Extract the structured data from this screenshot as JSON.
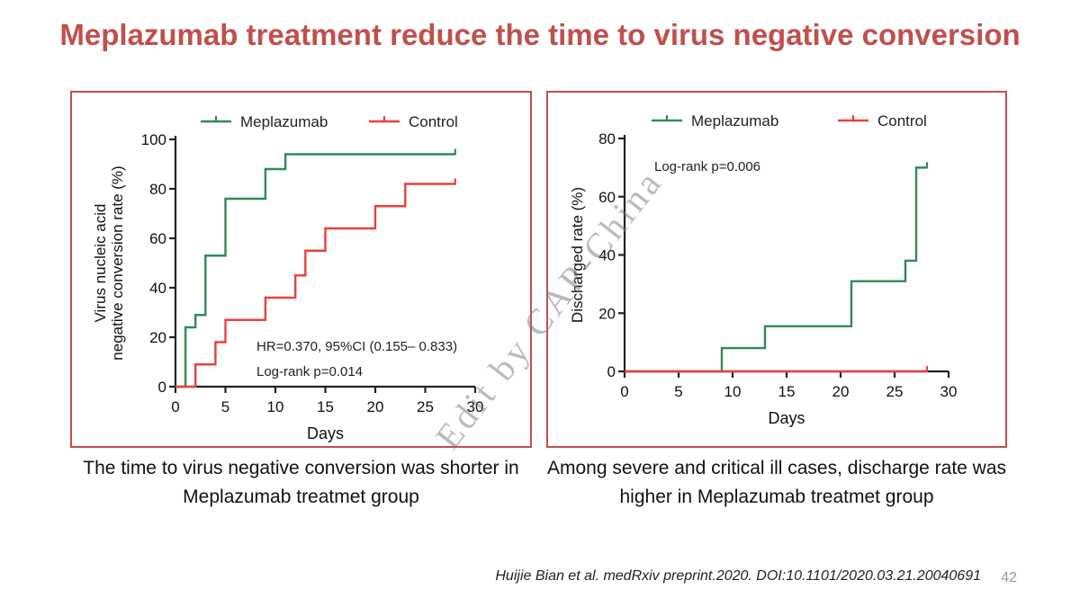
{
  "slide": {
    "title": "Meplazumab treatment reduce the time to virus negative conversion",
    "caption_left": "The time to virus negative conversion was shorter in  Meplazumab treatmet group",
    "caption_right": "Among severe and critical ill cases, discharge rate was higher in Meplazumab treatmet group",
    "citation": "Huijie Bian et al. medRxiv preprint.2020. DOI:10.1101/2020.03.21.20040691",
    "page_number": "42",
    "watermark": "Edit by CAP-China"
  },
  "colors": {
    "title": "#c0504d",
    "meplazumab": "#2e8b57",
    "control": "#e8413a",
    "panel_border": "#c0504d"
  },
  "chart_data": [
    {
      "type": "line",
      "step": true,
      "xlabel": "Days",
      "ylabel": "Virus nucleic acid negative conversion rate (%)",
      "ylabel_lines": [
        "Virus nucleic acid",
        "negative conversion rate (%)"
      ],
      "xlim": [
        0,
        30
      ],
      "ylim": [
        0,
        100
      ],
      "xticks": [
        "0",
        "5",
        "10",
        "15",
        "20",
        "25",
        "30"
      ],
      "yticks": [
        "0",
        "20",
        "40",
        "60",
        "80",
        "100"
      ],
      "legend_position": "top",
      "annotations": [
        "HR=0.370, 95%CI (0.155–  0.833)",
        "Log-rank p=0.014"
      ],
      "series": [
        {
          "name": "Meplazumab",
          "x": [
            0,
            1,
            2,
            3,
            5,
            9,
            11,
            28
          ],
          "y": [
            0,
            24,
            29,
            53,
            76,
            88,
            94,
            94
          ]
        },
        {
          "name": "Control",
          "x": [
            0,
            2,
            4,
            5,
            9,
            12,
            13,
            15,
            20,
            23,
            28
          ],
          "y": [
            0,
            9,
            18,
            27,
            36,
            45,
            55,
            64,
            73,
            82,
            82
          ]
        }
      ]
    },
    {
      "type": "line",
      "step": true,
      "xlabel": "Days",
      "ylabel": "Discharged rate (%)",
      "xlim": [
        0,
        30
      ],
      "ylim": [
        0,
        80
      ],
      "xticks": [
        "0",
        "5",
        "10",
        "15",
        "20",
        "25",
        "30"
      ],
      "yticks": [
        "0",
        "20",
        "40",
        "60",
        "80"
      ],
      "legend_position": "top",
      "annotations": [
        "Log-rank p=0.006"
      ],
      "series": [
        {
          "name": "Meplazumab",
          "x": [
            0,
            9,
            13,
            21,
            26,
            27,
            28
          ],
          "y": [
            0,
            8,
            15.5,
            31,
            38,
            70,
            70
          ]
        },
        {
          "name": "Control",
          "x": [
            0,
            28
          ],
          "y": [
            0,
            0
          ]
        }
      ]
    }
  ]
}
